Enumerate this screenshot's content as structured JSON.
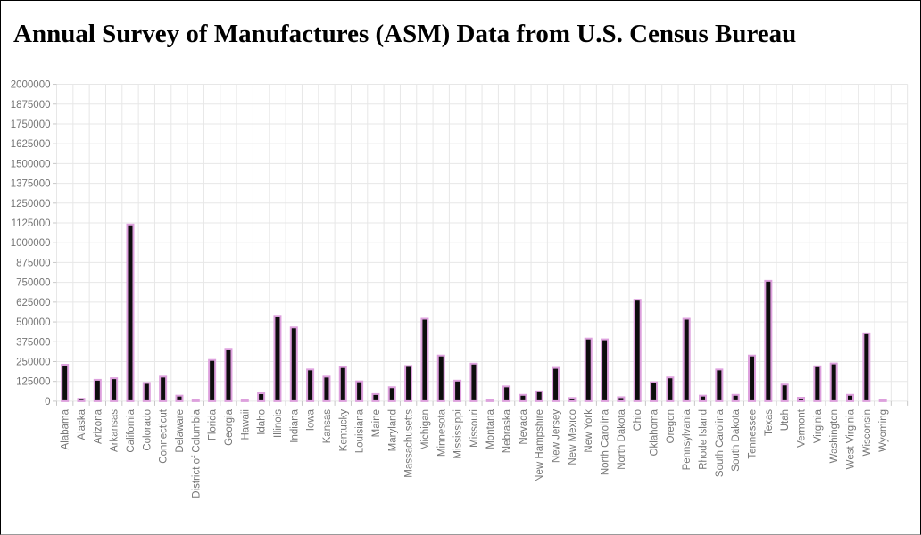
{
  "header": {
    "title": "Annual Survey of Manufactures (ASM) Data from U.S. Census Bureau"
  },
  "chart_data": {
    "type": "bar",
    "title": "Annual Survey of Manufactures (ASM) Data from U.S. Census Bureau",
    "xlabel": "",
    "ylabel": "",
    "grid": true,
    "legend": "none",
    "ylim": [
      0,
      2000000
    ],
    "ytick_step": 125000,
    "ytick_labels": [
      "0",
      "125000",
      "250000",
      "375000",
      "500000",
      "625000",
      "750000",
      "875000",
      "1000000",
      "1125000",
      "1250000",
      "1375000",
      "1500000",
      "1625000",
      "1750000",
      "1875000",
      "2000000"
    ],
    "categories": [
      "Alabama",
      "Alaska",
      "Arizona",
      "Arkansas",
      "California",
      "Colorado",
      "Connecticut",
      "Delaware",
      "District of Columbia",
      "Florida",
      "Georgia",
      "Hawaii",
      "Idaho",
      "Illinois",
      "Indiana",
      "Iowa",
      "Kansas",
      "Kentucky",
      "Louisiana",
      "Maine",
      "Maryland",
      "Massachusetts",
      "Michigan",
      "Minnesota",
      "Mississippi",
      "Missouri",
      "Montana",
      "Nebraska",
      "Nevada",
      "New Hampshire",
      "New Jersey",
      "New Mexico",
      "New York",
      "North Carolina",
      "North Dakota",
      "Ohio",
      "Oklahoma",
      "Oregon",
      "Pennsylvania",
      "Rhode Island",
      "South Carolina",
      "South Dakota",
      "Tennessee",
      "Texas",
      "Utah",
      "Vermont",
      "Virginia",
      "Washington",
      "West Virginia",
      "Wisconsin",
      "Wyoming"
    ],
    "values": [
      230000,
      15000,
      135000,
      145000,
      1115000,
      115000,
      155000,
      35000,
      6000,
      260000,
      330000,
      6000,
      50000,
      538000,
      465000,
      200000,
      155000,
      215000,
      125000,
      45000,
      88000,
      222000,
      520000,
      288000,
      130000,
      237000,
      8000,
      93000,
      40000,
      62000,
      210000,
      20000,
      395000,
      390000,
      25000,
      640000,
      120000,
      150000,
      520000,
      35000,
      200000,
      40000,
      288000,
      760000,
      105000,
      22000,
      220000,
      238000,
      40000,
      428000,
      6000
    ],
    "colors": {
      "bar_fill": "#0d0d0d",
      "bar_stroke": "#dda0dd",
      "grid": "#e7e7e7",
      "tick": "#c8c8c8",
      "axis_text": "#757575",
      "title_text": "#000000",
      "background": "#ffffff"
    }
  }
}
